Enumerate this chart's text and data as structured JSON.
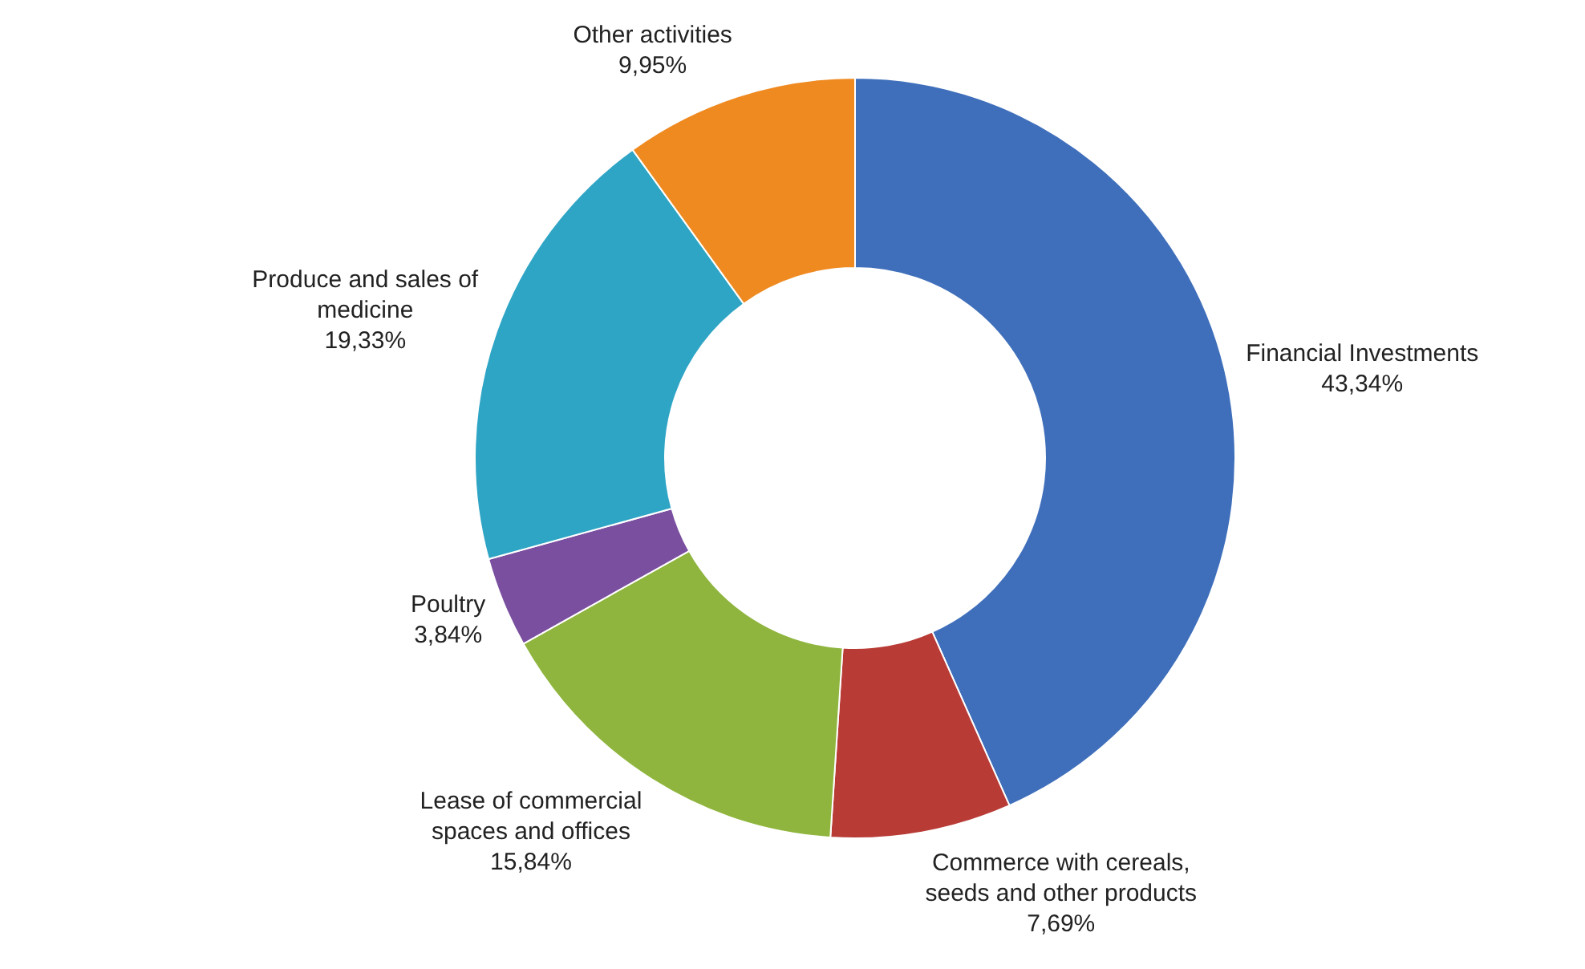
{
  "chart_data": {
    "type": "donut",
    "categories": [
      "Financial Investments",
      "Commerce with cereals, seeds and other products",
      "Lease of commercial spaces and offices",
      "Poultry",
      "Produce and sales of medicine",
      "Other activities"
    ],
    "values": [
      43.34,
      7.69,
      15.84,
      3.84,
      19.33,
      9.95
    ],
    "value_labels": [
      "43,34%",
      "7,69%",
      "15,84%",
      "3,84%",
      "19,33%",
      "9,95%"
    ],
    "colors": [
      "#3f6fbb",
      "#b83b36",
      "#8fb53e",
      "#7a4f9f",
      "#2fa5c5",
      "#ef8a21"
    ],
    "legend": false
  }
}
